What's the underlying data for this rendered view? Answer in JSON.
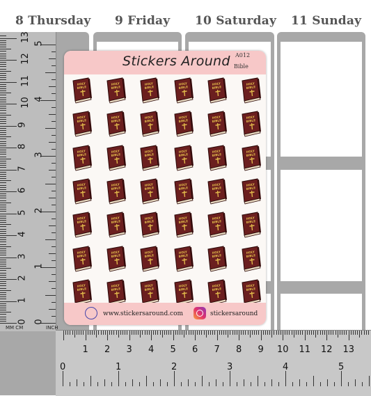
{
  "planner": {
    "days": [
      {
        "num": "8",
        "name": "Thursday"
      },
      {
        "num": "9",
        "name": "Friday"
      },
      {
        "num": "10",
        "name": "Saturday"
      },
      {
        "num": "11",
        "name": "Sunday"
      }
    ]
  },
  "ruler": {
    "cm_labels_vertical": [
      "13",
      "12",
      "11",
      "10",
      "9",
      "8",
      "7",
      "6",
      "5",
      "4",
      "3",
      "2",
      "1",
      "0"
    ],
    "inch_labels_vertical": [
      "5",
      "4",
      "3",
      "2",
      "1",
      "0"
    ],
    "cm_labels_horizontal": [
      "1",
      "2",
      "3",
      "4",
      "5",
      "6",
      "7",
      "8",
      "9",
      "10",
      "11",
      "12",
      "13"
    ],
    "inch_labels_horizontal": [
      "0",
      "1",
      "2",
      "3",
      "4",
      "5"
    ],
    "unit_mm": "MM",
    "unit_cm": "CM",
    "unit_inch": "INCH"
  },
  "sheet": {
    "brand": "Stickers Around",
    "code": "A012",
    "theme": "Bible",
    "website": "www.stickersaround.com",
    "instagram": "stickersaround",
    "sticker_label_line1": "HOLY",
    "sticker_label_line2": "BIBLE",
    "sticker_rows": 7,
    "sticker_cols": 6,
    "colors": {
      "header_band": "#f7c8c8",
      "bible_cover": "#6b1f1f",
      "bible_text": "#e0b84a"
    }
  },
  "icons": [
    "globe-icon",
    "instagram-icon",
    "cross-icon"
  ]
}
